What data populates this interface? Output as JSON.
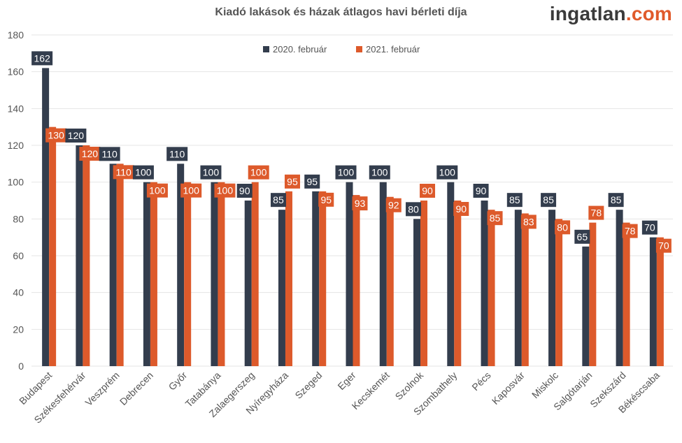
{
  "brand": {
    "name": "ingatlan",
    "tld": ".com"
  },
  "colors": {
    "series2020": "#333d4d",
    "series2021": "#dd5a2b",
    "grid": "#e4e4e4",
    "axisText": "#555555"
  },
  "chart_data": {
    "type": "bar",
    "title": "Kiadó lakások és házak átlagos havi bérleti díja",
    "xlabel": "",
    "ylabel": "",
    "ylim": [
      0,
      180
    ],
    "yticks": [
      0,
      20,
      40,
      60,
      80,
      100,
      120,
      140,
      160,
      180
    ],
    "grid": true,
    "legend_position": "top-center",
    "categories": [
      "Budapest",
      "Székesfehérvár",
      "Veszprém",
      "Debrecen",
      "Győr",
      "Tatabánya",
      "Zalaegerszeg",
      "Nyíregyháza",
      "Szeged",
      "Eger",
      "Kecskemét",
      "Szolnok",
      "Szombathely",
      "Pécs",
      "Kaposvár",
      "Miskolc",
      "Salgótarján",
      "Szekszárd",
      "Békéscsaba"
    ],
    "series": [
      {
        "name": "2020. február",
        "values": [
          162,
          120,
          110,
          100,
          110,
          100,
          90,
          85,
          95,
          100,
          100,
          80,
          100,
          90,
          85,
          85,
          65,
          85,
          70
        ]
      },
      {
        "name": "2021. február",
        "values": [
          130,
          120,
          110,
          100,
          100,
          100,
          100,
          95,
          95,
          93,
          92,
          90,
          90,
          85,
          83,
          80,
          78,
          78,
          70
        ]
      }
    ]
  }
}
